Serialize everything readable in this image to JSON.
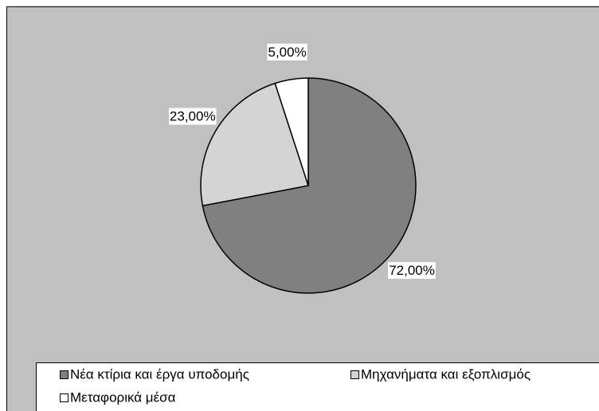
{
  "chart_data": {
    "type": "pie",
    "categories": [
      "Νέα κτίρια και έργα υποδομής",
      "Μηχανήματα και εξοπλισμός",
      "Μεταφορικά μέσα"
    ],
    "values": [
      72,
      23,
      5
    ],
    "value_labels": [
      "72,00%",
      "23,00%",
      "5,00%"
    ],
    "colors": [
      "#808080",
      "#d4d4d4",
      "#ffffff"
    ],
    "legend": "bottom"
  }
}
